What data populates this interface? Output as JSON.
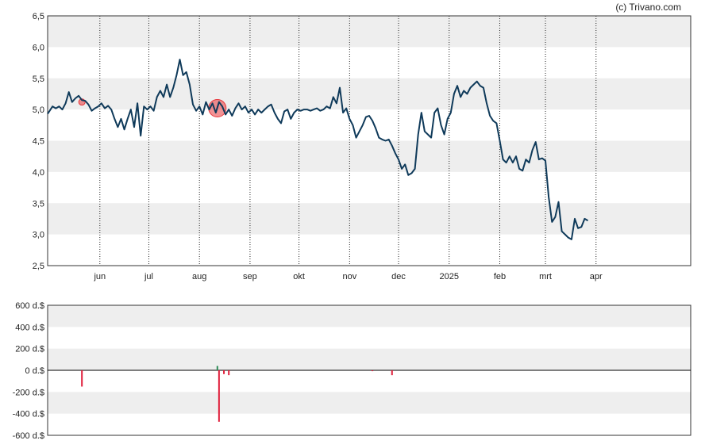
{
  "credit": "(c) Trivano.com",
  "chart_data": [
    {
      "type": "line",
      "y_ticks": [
        "6,5",
        "6,0",
        "5,5",
        "5,0",
        "4,5",
        "4,0",
        "3,5",
        "3,0",
        "2,5"
      ],
      "ylim": [
        2.5,
        6.5
      ],
      "x_ticks": [
        "jun",
        "jul",
        "aug",
        "sep",
        "okt",
        "nov",
        "dec",
        "2025",
        "feb",
        "mrt",
        "apr"
      ],
      "x_tick_days": [
        18,
        48,
        79,
        110,
        140,
        171,
        201,
        232,
        263,
        291,
        322
      ],
      "x_range_days": [
        -14,
        380
      ],
      "grid": true,
      "colors": {
        "line": "#0f3a5a",
        "band": "#eeeeee",
        "marker": "#e8383d"
      },
      "series": [
        {
          "points": [
            [
              -14,
              4.93
            ],
            [
              -11,
              5.05
            ],
            [
              -9,
              5.02
            ],
            [
              -7,
              5.05
            ],
            [
              -5,
              5.0
            ],
            [
              -3,
              5.1
            ],
            [
              -1,
              5.28
            ],
            [
              1,
              5.12
            ],
            [
              3,
              5.18
            ],
            [
              5,
              5.22
            ],
            [
              7,
              5.15
            ],
            [
              9,
              5.14
            ],
            [
              11,
              5.08
            ],
            [
              13,
              4.98
            ],
            [
              15,
              5.02
            ],
            [
              17,
              5.05
            ],
            [
              19,
              5.1
            ],
            [
              21,
              5.02
            ],
            [
              23,
              5.06
            ],
            [
              25,
              5.0
            ],
            [
              27,
              4.85
            ],
            [
              29,
              4.72
            ],
            [
              31,
              4.85
            ],
            [
              33,
              4.68
            ],
            [
              35,
              4.85
            ],
            [
              37,
              5.0
            ],
            [
              39,
              4.72
            ],
            [
              41,
              5.1
            ],
            [
              43,
              4.58
            ],
            [
              45,
              5.05
            ],
            [
              47,
              5.0
            ],
            [
              49,
              5.05
            ],
            [
              51,
              4.98
            ],
            [
              53,
              5.2
            ],
            [
              55,
              5.3
            ],
            [
              57,
              5.2
            ],
            [
              59,
              5.4
            ],
            [
              61,
              5.2
            ],
            [
              63,
              5.35
            ],
            [
              65,
              5.55
            ],
            [
              67,
              5.8
            ],
            [
              69,
              5.55
            ],
            [
              71,
              5.6
            ],
            [
              73,
              5.4
            ],
            [
              75,
              5.08
            ],
            [
              77,
              4.98
            ],
            [
              79,
              5.05
            ],
            [
              81,
              4.92
            ],
            [
              83,
              5.12
            ],
            [
              85,
              5.0
            ],
            [
              87,
              5.1
            ],
            [
              89,
              4.95
            ],
            [
              91,
              5.12
            ],
            [
              93,
              5.05
            ],
            [
              95,
              4.92
            ],
            [
              97,
              5.0
            ],
            [
              99,
              4.9
            ],
            [
              101,
              5.02
            ],
            [
              103,
              5.1
            ],
            [
              105,
              5.0
            ],
            [
              107,
              5.05
            ],
            [
              109,
              4.95
            ],
            [
              111,
              5.0
            ],
            [
              113,
              4.92
            ],
            [
              115,
              5.0
            ],
            [
              117,
              4.95
            ],
            [
              119,
              5.0
            ],
            [
              121,
              5.05
            ],
            [
              123,
              5.08
            ],
            [
              125,
              4.95
            ],
            [
              127,
              4.85
            ],
            [
              129,
              4.78
            ],
            [
              131,
              4.97
            ],
            [
              133,
              5.0
            ],
            [
              135,
              4.85
            ],
            [
              137,
              4.95
            ],
            [
              139,
              5.0
            ],
            [
              141,
              4.98
            ],
            [
              143,
              5.0
            ],
            [
              145,
              5.0
            ],
            [
              147,
              4.98
            ],
            [
              149,
              5.0
            ],
            [
              151,
              5.02
            ],
            [
              153,
              4.98
            ],
            [
              155,
              5.0
            ],
            [
              157,
              5.05
            ],
            [
              159,
              5.02
            ],
            [
              161,
              5.2
            ],
            [
              163,
              5.1
            ],
            [
              165,
              5.35
            ],
            [
              167,
              4.95
            ],
            [
              169,
              5.02
            ],
            [
              171,
              4.85
            ],
            [
              173,
              4.75
            ],
            [
              175,
              4.55
            ],
            [
              177,
              4.65
            ],
            [
              179,
              4.75
            ],
            [
              181,
              4.88
            ],
            [
              183,
              4.9
            ],
            [
              185,
              4.82
            ],
            [
              187,
              4.7
            ],
            [
              189,
              4.55
            ],
            [
              191,
              4.52
            ],
            [
              193,
              4.5
            ],
            [
              195,
              4.52
            ],
            [
              197,
              4.42
            ],
            [
              199,
              4.3
            ],
            [
              201,
              4.2
            ],
            [
              203,
              4.05
            ],
            [
              205,
              4.12
            ],
            [
              207,
              3.95
            ],
            [
              209,
              3.98
            ],
            [
              211,
              4.05
            ],
            [
              213,
              4.6
            ],
            [
              215,
              4.95
            ],
            [
              217,
              4.65
            ],
            [
              219,
              4.6
            ],
            [
              221,
              4.55
            ],
            [
              223,
              4.95
            ],
            [
              225,
              5.02
            ],
            [
              227,
              4.75
            ],
            [
              229,
              4.6
            ],
            [
              231,
              4.85
            ],
            [
              233,
              4.95
            ],
            [
              235,
              5.25
            ],
            [
              237,
              5.38
            ],
            [
              239,
              5.2
            ],
            [
              241,
              5.3
            ],
            [
              243,
              5.25
            ],
            [
              245,
              5.35
            ],
            [
              247,
              5.4
            ],
            [
              249,
              5.45
            ],
            [
              251,
              5.38
            ],
            [
              253,
              5.35
            ],
            [
              255,
              5.1
            ],
            [
              257,
              4.9
            ],
            [
              259,
              4.82
            ],
            [
              261,
              4.78
            ],
            [
              263,
              4.5
            ],
            [
              265,
              4.2
            ],
            [
              267,
              4.15
            ],
            [
              269,
              4.25
            ],
            [
              271,
              4.15
            ],
            [
              273,
              4.25
            ],
            [
              275,
              4.05
            ],
            [
              277,
              4.02
            ],
            [
              279,
              4.2
            ],
            [
              281,
              4.15
            ],
            [
              283,
              4.35
            ],
            [
              285,
              4.48
            ],
            [
              287,
              4.2
            ],
            [
              289,
              4.22
            ],
            [
              291,
              4.18
            ],
            [
              293,
              3.6
            ],
            [
              295,
              3.2
            ],
            [
              297,
              3.28
            ],
            [
              299,
              3.52
            ],
            [
              301,
              3.05
            ],
            [
              303,
              3.0
            ],
            [
              305,
              2.95
            ],
            [
              307,
              2.92
            ],
            [
              309,
              3.25
            ],
            [
              311,
              3.1
            ],
            [
              313,
              3.12
            ],
            [
              315,
              3.25
            ],
            [
              317,
              3.22
            ]
          ]
        }
      ],
      "markers": [
        {
          "day": 7,
          "y": 5.12,
          "size": "small"
        },
        {
          "day": 90,
          "y": 5.02,
          "size": "large"
        }
      ]
    },
    {
      "type": "bar",
      "y_ticks": [
        "600 d.$",
        "400 d.$",
        "200 d.$",
        "0 d.$",
        "-200 d.$",
        "-400 d.$",
        "-600 d.$"
      ],
      "ylim": [
        -600,
        600
      ],
      "grid": true,
      "colors": {
        "negative": "#e0203c",
        "positive": "#2e8b57",
        "band": "#eeeeee"
      },
      "bars": [
        {
          "day": 7,
          "value": -150
        },
        {
          "day": 90,
          "value": 40
        },
        {
          "day": 91,
          "value": -475
        },
        {
          "day": 94,
          "value": -35
        },
        {
          "day": 97,
          "value": -45
        },
        {
          "day": 185,
          "value": -8
        },
        {
          "day": 197,
          "value": -45
        }
      ]
    }
  ]
}
